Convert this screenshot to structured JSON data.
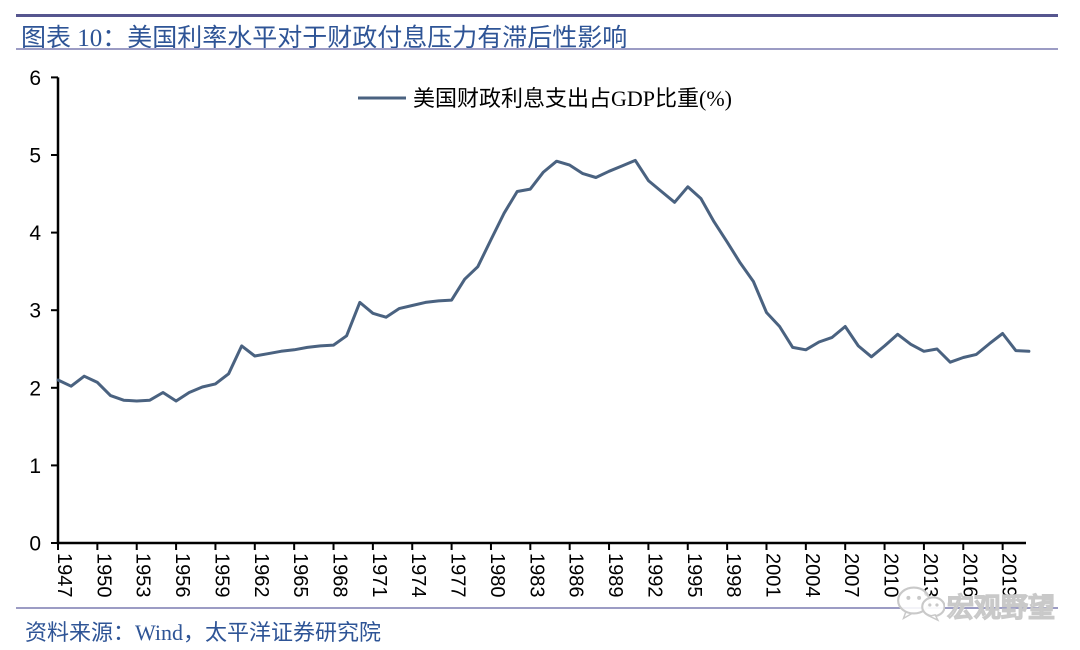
{
  "header": {
    "title": "图表 10：美国利率水平对于财政付息压力有滞后性影响"
  },
  "legend": {
    "label": "美国财政利息支出占GDP比重(%)"
  },
  "footer": {
    "source": "资料来源：Wind，太平洋证券研究院"
  },
  "watermark": {
    "text": "宏观野望",
    "icon": "wechat-icon"
  },
  "colors": {
    "line": "#4a6280",
    "rule_top": "#56568f",
    "rule_light": "#9c9cc4",
    "heading_text": "#2e5496",
    "axis": "#000000",
    "watermark": "#c9c9c9"
  },
  "chart_data": {
    "type": "line",
    "title": "",
    "xlabel": "",
    "ylabel": "",
    "ylim": [
      0,
      6
    ],
    "yticks": [
      0,
      1,
      2,
      3,
      4,
      5,
      6
    ],
    "x_tick_years": [
      1947,
      1950,
      1953,
      1956,
      1959,
      1962,
      1965,
      1968,
      1971,
      1974,
      1977,
      1980,
      1983,
      1986,
      1989,
      1992,
      1995,
      1998,
      2001,
      2004,
      2007,
      2010,
      2013,
      2016,
      2019
    ],
    "grid": false,
    "legend_position": "top-center",
    "series": [
      {
        "name": "美国财政利息支出占GDP比重(%)",
        "x": [
          1947,
          1948,
          1949,
          1950,
          1951,
          1952,
          1953,
          1954,
          1955,
          1956,
          1957,
          1958,
          1959,
          1960,
          1961,
          1962,
          1963,
          1964,
          1965,
          1966,
          1967,
          1968,
          1969,
          1970,
          1971,
          1972,
          1973,
          1974,
          1975,
          1976,
          1977,
          1978,
          1979,
          1980,
          1981,
          1982,
          1983,
          1984,
          1985,
          1986,
          1987,
          1988,
          1989,
          1990,
          1991,
          1992,
          1993,
          1994,
          1995,
          1996,
          1997,
          1998,
          1999,
          2000,
          2001,
          2002,
          2003,
          2004,
          2005,
          2006,
          2007,
          2008,
          2009,
          2010,
          2011,
          2012,
          2013,
          2014,
          2015,
          2016,
          2017,
          2018,
          2019,
          2020,
          2021
        ],
        "values": [
          2.1,
          2.02,
          2.15,
          2.07,
          1.9,
          1.84,
          1.83,
          1.84,
          1.94,
          1.83,
          1.94,
          2.01,
          2.05,
          2.18,
          2.54,
          2.41,
          2.44,
          2.47,
          2.49,
          2.52,
          2.54,
          2.55,
          2.67,
          3.1,
          2.96,
          2.91,
          3.02,
          3.06,
          3.1,
          3.12,
          3.13,
          3.4,
          3.56,
          3.91,
          4.25,
          4.53,
          4.56,
          4.78,
          4.92,
          4.87,
          4.76,
          4.71,
          4.79,
          4.86,
          4.93,
          4.67,
          4.53,
          4.39,
          4.59,
          4.44,
          4.14,
          3.88,
          3.61,
          3.37,
          2.97,
          2.79,
          2.52,
          2.49,
          2.59,
          2.65,
          2.79,
          2.54,
          2.4,
          2.54,
          2.69,
          2.56,
          2.47,
          2.5,
          2.33,
          2.39,
          2.43,
          2.57,
          2.7,
          2.48,
          2.47
        ]
      }
    ]
  }
}
